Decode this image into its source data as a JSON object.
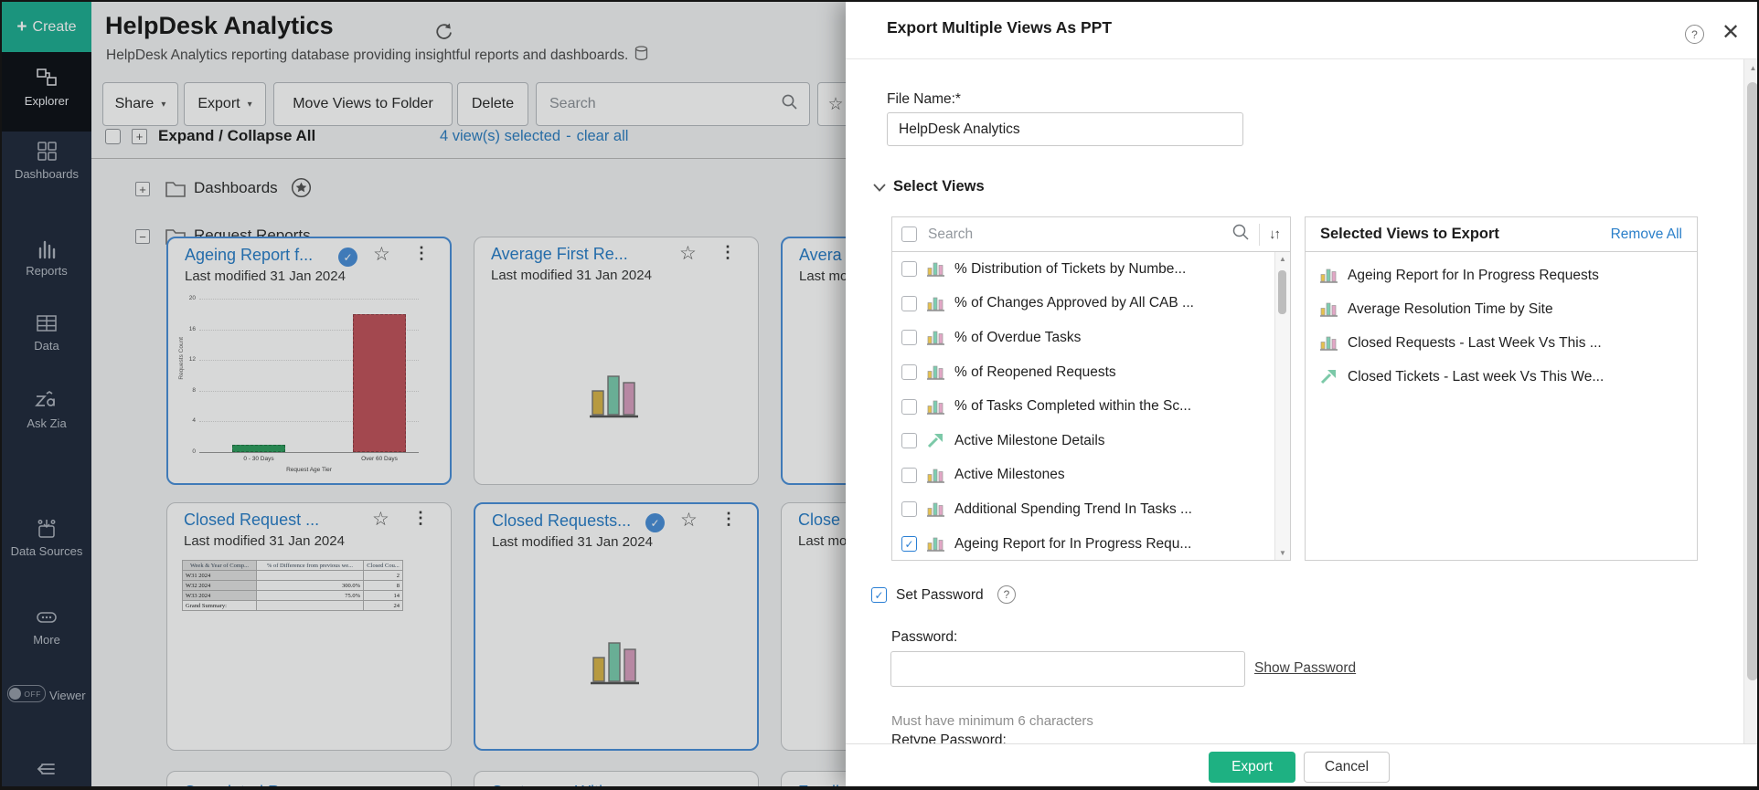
{
  "colors": {
    "accent_teal": "#1FAE93",
    "export_green": "#1EB182",
    "link_blue": "#2E7FC2",
    "card_title_blue": "#2A7FC9",
    "selected_border_blue": "#4A90D9",
    "sidebar_bg": "#222C3D"
  },
  "sidebar": {
    "create_label": "Create",
    "items": [
      {
        "label": "Explorer",
        "icon": "explorer-icon",
        "active": true
      },
      {
        "label": "Dashboards",
        "icon": "dashboards-icon",
        "active": false
      },
      {
        "label": "Reports",
        "icon": "reports-icon",
        "active": false
      },
      {
        "label": "Data",
        "icon": "data-icon",
        "active": false
      },
      {
        "label": "Ask Zia",
        "icon": "ask-zia-icon",
        "active": false
      },
      {
        "label": "Data Sources",
        "icon": "data-sources-icon",
        "active": false
      },
      {
        "label": "More",
        "icon": "more-icon",
        "active": false
      }
    ],
    "viewer": {
      "label": "Viewer",
      "toggle_state": "OFF"
    }
  },
  "header": {
    "title": "HelpDesk Analytics",
    "subtitle": "HelpDesk Analytics reporting database providing insightful reports and dashboards."
  },
  "toolbar": {
    "share": "Share",
    "export": "Export",
    "move": "Move Views to Folder",
    "delete": "Delete",
    "search_placeholder": "Search"
  },
  "selection_bar": {
    "expand_collapse": "Expand / Collapse All",
    "selected_info": "4 view(s) selected",
    "separator": "-",
    "clear_all": "clear all"
  },
  "folders": [
    {
      "name": "Dashboards",
      "expander": "+",
      "favorite": true
    },
    {
      "name": "Request Reports",
      "expander": "−",
      "favorite": false
    }
  ],
  "cards": [
    {
      "title": "Ageing Report f...",
      "modified": "Last modified 31 Jan 2024",
      "selected": true,
      "thumbnail": "chart"
    },
    {
      "title": "Average First Re...",
      "modified": "Last modified 31 Jan 2024",
      "selected": false,
      "thumbnail": "placeholder"
    },
    {
      "title": "Avera",
      "modified": "Last mo",
      "selected": true,
      "thumbnail": "none"
    },
    {
      "title": "Closed Request ...",
      "modified": "Last modified 31 Jan 2024",
      "selected": false,
      "thumbnail": "table"
    },
    {
      "title": "Closed Requests...",
      "modified": "Last modified 31 Jan 2024",
      "selected": true,
      "thumbnail": "placeholder"
    },
    {
      "title": "Close",
      "modified": "Last mo",
      "selected": false,
      "thumbnail": "none"
    }
  ],
  "cards_row3": [
    {
      "title": "Completed Re"
    },
    {
      "title": "Customers With"
    },
    {
      "title": "Feedb"
    }
  ],
  "chart_data": {
    "type": "bar",
    "title": "",
    "categories": [
      "0 - 30 Days",
      "Over 60 Days"
    ],
    "values": [
      1,
      18
    ],
    "colors": [
      "#2F9E5F",
      "#C2545C"
    ],
    "xlabel": "Request Age Tier",
    "ylabel": "Requests Count",
    "ylim": [
      0,
      20
    ],
    "yticks": [
      0,
      4,
      8,
      12,
      16,
      20
    ],
    "grid": true,
    "legend": false
  },
  "table_data": {
    "headers": [
      "Week & Year of Comp...",
      "% of Difference from previous we...",
      "Closed Cou..."
    ],
    "rows": [
      [
        "W31 2024",
        "",
        "2"
      ],
      [
        "W32 2024",
        "300.0%",
        "8"
      ],
      [
        "W33 2024",
        "75.0%",
        "14"
      ],
      [
        "Grand Summary:",
        "",
        "24"
      ]
    ]
  },
  "modal": {
    "title": "Export Multiple Views As PPT",
    "file_name_label": "File Name:*",
    "file_name_value": "HelpDesk Analytics",
    "select_views_label": "Select Views",
    "search_placeholder": "Search",
    "views": [
      {
        "name": "% Distribution of Tickets by Numbe...",
        "icon": "bar",
        "checked": false
      },
      {
        "name": "% of Changes Approved by All CAB ...",
        "icon": "bar",
        "checked": false
      },
      {
        "name": "% of Overdue Tasks",
        "icon": "bar",
        "checked": false
      },
      {
        "name": "% of Reopened Requests",
        "icon": "bar",
        "checked": false
      },
      {
        "name": "% of Tasks Completed within the Sc...",
        "icon": "bar",
        "checked": false
      },
      {
        "name": "Active Milestone Details",
        "icon": "trend",
        "checked": false
      },
      {
        "name": "Active Milestones",
        "icon": "bar",
        "checked": false
      },
      {
        "name": "Additional Spending Trend In Tasks ...",
        "icon": "bar",
        "checked": false
      },
      {
        "name": "Ageing Report for In Progress Requ...",
        "icon": "bar",
        "checked": true
      }
    ],
    "selected_panel": {
      "title": "Selected Views to Export",
      "remove_all": "Remove All",
      "items": [
        {
          "name": "Ageing Report for In Progress Requests",
          "icon": "bar"
        },
        {
          "name": "Average Resolution Time by Site",
          "icon": "bar"
        },
        {
          "name": "Closed Requests - Last Week Vs This ...",
          "icon": "bar"
        },
        {
          "name": "Closed Tickets - Last week Vs This We...",
          "icon": "trend"
        }
      ]
    },
    "password": {
      "set_password_label": "Set Password",
      "password_label": "Password:",
      "password_value": "",
      "show_password": "Show Password",
      "hint": "Must have minimum 6 characters",
      "retype_label": "Retype Password:"
    },
    "buttons": {
      "export": "Export",
      "cancel": "Cancel"
    }
  }
}
